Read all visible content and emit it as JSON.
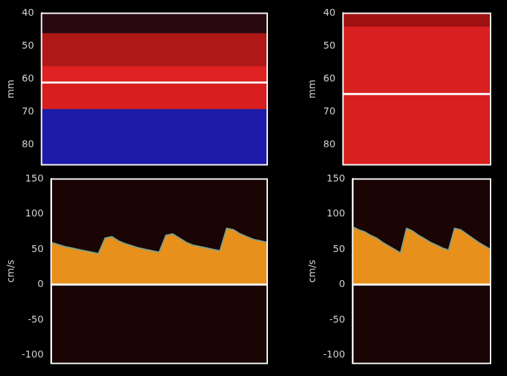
{
  "chart_data": [
    {
      "type": "band",
      "y_label": "mm",
      "ylim": [
        86,
        40
      ],
      "yticks": [
        40,
        50,
        60,
        70,
        80
      ],
      "tick_labels": "y",
      "bands": [
        {
          "from": 40,
          "to": 46,
          "color": "#2a0810"
        },
        {
          "from": 46,
          "to": 56,
          "color": "#b01818"
        },
        {
          "from": 56,
          "to": 61,
          "color": "#e02222"
        },
        {
          "from": 61,
          "to": 69,
          "color": "#d81e1e"
        },
        {
          "from": 69,
          "to": 86,
          "color": "#1c1ca8"
        }
      ],
      "cursor": 61
    },
    {
      "type": "band",
      "y_label": "mm",
      "ylim": [
        86,
        40
      ],
      "yticks": [
        40,
        50,
        60,
        70,
        80
      ],
      "tick_labels": "y",
      "bands": [
        {
          "from": 40,
          "to": 44,
          "color": "#a01212"
        },
        {
          "from": 44,
          "to": 86,
          "color": "#d82020"
        }
      ],
      "cursor": 64.5
    },
    {
      "type": "line",
      "y_label": "cm/s",
      "ylim": [
        -112,
        150
      ],
      "yticks": [
        -100,
        -50,
        0,
        50,
        100,
        150
      ],
      "tick_labels": "y",
      "color": "#e8901c",
      "baseline": 0,
      "categories": [
        null,
        null,
        null,
        null,
        null,
        null,
        null,
        null,
        null,
        null,
        null,
        null,
        null,
        null,
        null,
        null,
        null,
        null,
        null,
        null,
        null,
        null,
        null,
        null,
        null,
        null,
        null,
        null,
        null,
        null,
        null,
        null,
        null
      ],
      "values": [
        60,
        57,
        54,
        52,
        50,
        48,
        46,
        44,
        66,
        68,
        62,
        58,
        55,
        52,
        50,
        48,
        46,
        70,
        72,
        66,
        60,
        56,
        54,
        52,
        50,
        48,
        80,
        78,
        72,
        68,
        64,
        62,
        60
      ]
    },
    {
      "type": "line",
      "y_label": "cm/s",
      "ylim": [
        -112,
        150
      ],
      "yticks": [
        -100,
        -50,
        0,
        50,
        100,
        150
      ],
      "tick_labels": "y",
      "color": "#e8901c",
      "baseline": 0,
      "categories": [
        null,
        null,
        null,
        null,
        null,
        null,
        null,
        null,
        null,
        null,
        null,
        null,
        null,
        null,
        null,
        null,
        null,
        null,
        null,
        null,
        null,
        null,
        null,
        null
      ],
      "values": [
        82,
        78,
        75,
        70,
        66,
        60,
        55,
        50,
        45,
        80,
        76,
        70,
        65,
        60,
        56,
        52,
        49,
        80,
        78,
        72,
        66,
        60,
        55,
        50
      ]
    }
  ]
}
